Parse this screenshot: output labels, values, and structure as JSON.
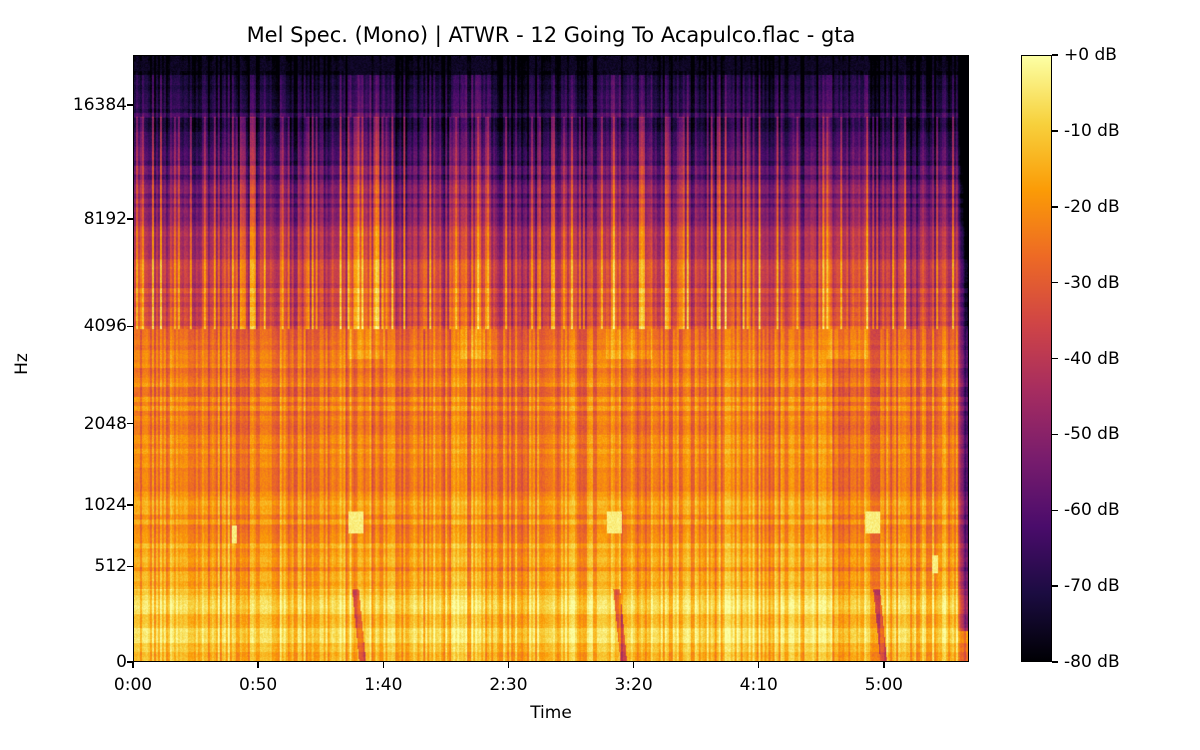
{
  "chart_data": {
    "type": "heatmap",
    "subtype": "mel-spectrogram",
    "title": "Mel Spec. (Mono) | ATWR - 12 Going To Acapulco.flac - gta",
    "xlabel": "Time",
    "ylabel": "Hz",
    "x_ticks": [
      "0:00",
      "0:50",
      "1:40",
      "2:30",
      "3:20",
      "4:10",
      "5:00"
    ],
    "x_tick_seconds": [
      0,
      50,
      100,
      150,
      200,
      250,
      300
    ],
    "x_range_seconds": [
      0,
      334
    ],
    "y_scale": "mel",
    "y_ticks": [
      "0",
      "512",
      "1024",
      "2048",
      "4096",
      "8192",
      "16384"
    ],
    "y_tick_hz": [
      0,
      512,
      1024,
      2048,
      4096,
      8192,
      16384
    ],
    "y_range_hz": [
      0,
      22050
    ],
    "colormap": "inferno",
    "colorbar": {
      "label_format": "%+2.0f dB",
      "ticks": [
        "+0 dB",
        "-10 dB",
        "-20 dB",
        "-30 dB",
        "-40 dB",
        "-50 dB",
        "-60 dB",
        "-70 dB",
        "-80 dB"
      ],
      "tick_values": [
        0,
        -10,
        -20,
        -30,
        -40,
        -50,
        -60,
        -70,
        -80
      ],
      "range": [
        -80,
        0
      ]
    },
    "features": {
      "energy_concentration": "strongest below ~300 Hz, bright broadband energy up to ~2 kHz",
      "high_freq_rolloff": "energy fades above ~6-8 kHz; near silence above ~16 kHz",
      "notable_events": [
        {
          "time": "1:25",
          "freq_hz": 700,
          "description": "bright short tone burst"
        },
        {
          "time": "3:15",
          "freq_hz": 700,
          "description": "bright short tone burst"
        },
        {
          "time": "4:55",
          "freq_hz": 700,
          "description": "bright short tone burst"
        },
        {
          "time": "1:23",
          "description": "low-frequency dip / sweep"
        },
        {
          "time": "3:12",
          "description": "low-frequency dip / sweep"
        },
        {
          "time": "4:53",
          "description": "low-frequency dip / sweep"
        }
      ],
      "ending": "fade-out near 5:32"
    },
    "legend_position": "right colorbar",
    "grid": false
  },
  "colors": {
    "cmap_stops": [
      "#000004",
      "#1b0c41",
      "#4a0c6b",
      "#781c6d",
      "#a52c60",
      "#cf4446",
      "#ed6925",
      "#fb9b06",
      "#f7d13d",
      "#fcffa4"
    ]
  }
}
